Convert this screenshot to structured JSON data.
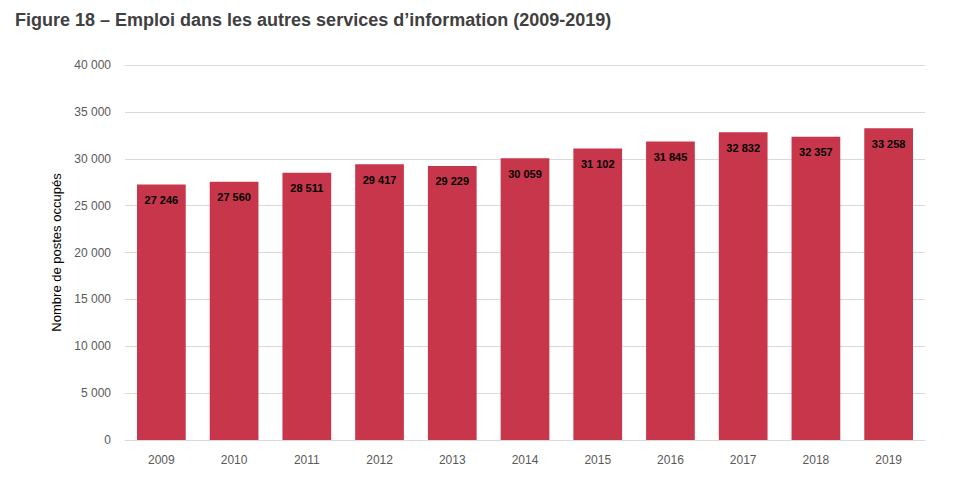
{
  "chart_data": {
    "type": "bar",
    "title": "Figure 18 – Emploi dans les autres services d’information (2009-2019)",
    "y_label": "Nombre de postes occupés",
    "categories": [
      "2009",
      "2010",
      "2011",
      "2012",
      "2013",
      "2014",
      "2015",
      "2016",
      "2017",
      "2018",
      "2019"
    ],
    "values": [
      27246,
      27560,
      28511,
      29417,
      29229,
      30059,
      31102,
      31845,
      32832,
      32357,
      33258
    ],
    "value_labels": [
      "27 246",
      "27 560",
      "28 511",
      "29 417",
      "29 229",
      "30 059",
      "31 102",
      "31 845",
      "32 832",
      "32 357",
      "33 258"
    ],
    "color": "#c8364c",
    "ylim": [
      0,
      40000
    ],
    "yticks": [
      0,
      {
        "value": 5000,
        "label": "5 000"
      },
      {
        "value": 10000,
        "label": "10 000"
      },
      {
        "value": 15000,
        "label": "15 000"
      },
      {
        "value": 20000,
        "label": "20 000"
      },
      {
        "value": 25000,
        "label": "25 000"
      },
      {
        "value": 30000,
        "label": "30 000"
      },
      {
        "value": 35000,
        "label": "35 000"
      },
      {
        "value": 40000,
        "label": "40 000"
      }
    ],
    "grid": true,
    "data_labels": true
  }
}
